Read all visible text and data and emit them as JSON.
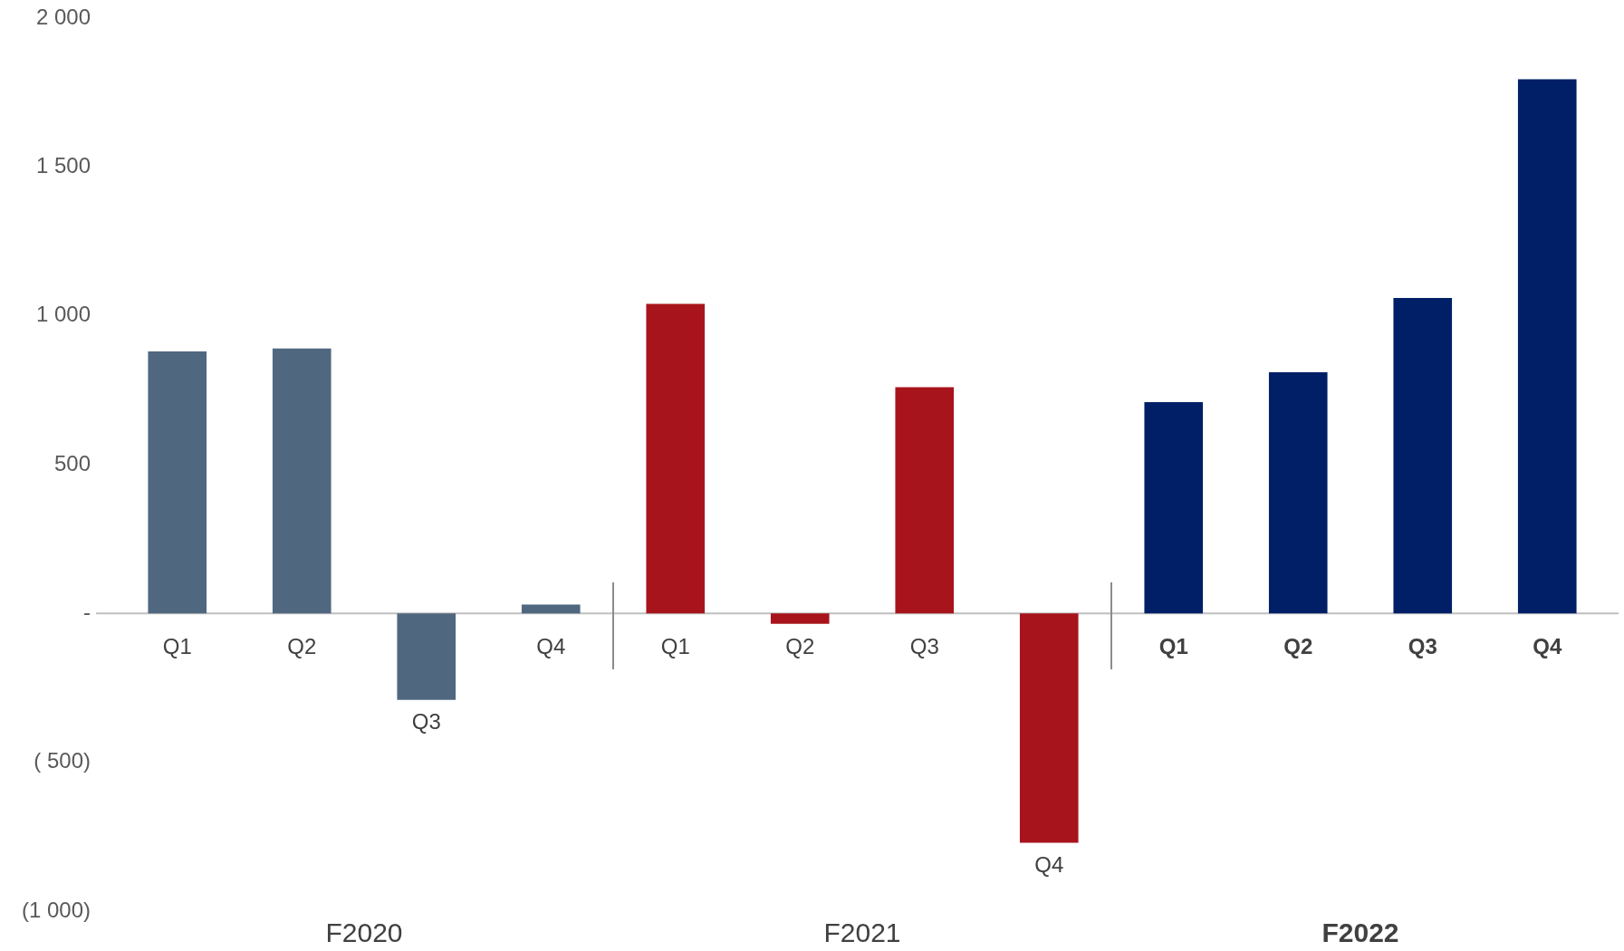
{
  "chart_data": [
    {
      "type": "bar",
      "xlabel": "F2020",
      "categories": [
        "Q1",
        "Q2",
        "Q3",
        "Q4"
      ],
      "values": [
        880,
        890,
        -290,
        30
      ],
      "color": "#506780",
      "ylim": [
        -1000,
        2000
      ],
      "yticks": [
        {
          "value": 2000,
          "label": "2 000"
        },
        {
          "value": 1500,
          "label": "1 500"
        },
        {
          "value": 1000,
          "label": "1 000"
        },
        500,
        {
          "value": 0,
          "label": "-"
        },
        {
          "value": -500,
          "label": "( 500)"
        },
        {
          "value": -1000,
          "label": "(1 000)"
        }
      ]
    },
    {
      "type": "bar",
      "xlabel": "F2021",
      "categories": [
        "Q1",
        "Q2",
        "Q3",
        "Q4"
      ],
      "values": [
        1040,
        -35,
        760,
        -770
      ],
      "color": "#a8141b",
      "ylim": [
        -1000,
        2000
      ],
      "tick_labels": "x"
    },
    {
      "type": "bar",
      "xlabel": "F2022",
      "categories": [
        "Q1",
        "Q2",
        "Q3",
        "Q4"
      ],
      "values": [
        710,
        810,
        1060,
        1795
      ],
      "color": "#011f66",
      "ylim": [
        -1000,
        2000
      ],
      "tick_labels": "x"
    }
  ]
}
